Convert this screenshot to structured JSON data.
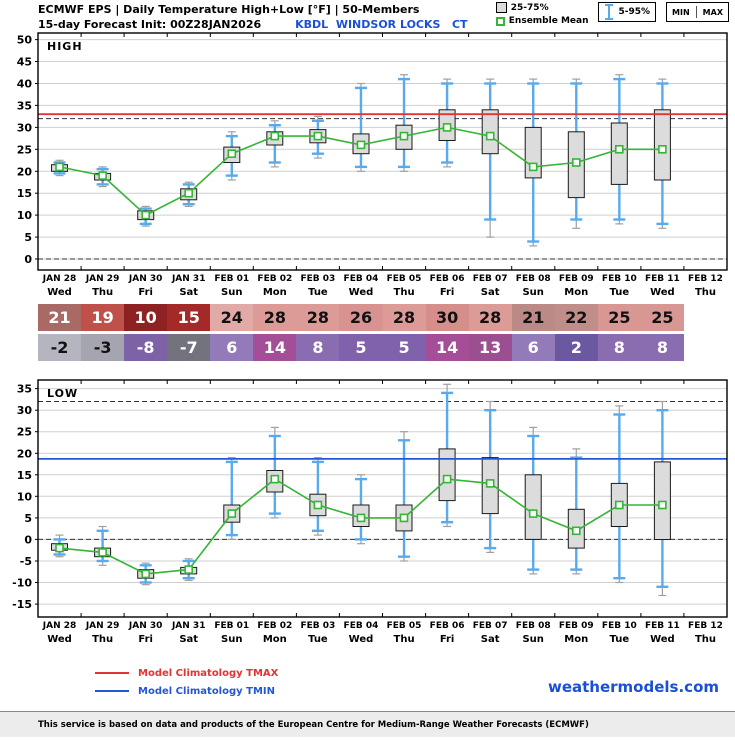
{
  "header": {
    "title_line1": "ECMWF EPS | Daily Temperature High+Low [°F] | 50-Members",
    "title_line2": "15-day Forecast Init: 00Z28JAN2026",
    "station": "KBDL  WINDSOR LOCKS   CT",
    "legend": {
      "box_label": "25-75%",
      "mean_label": "Ensemble Mean",
      "whisker_label": "5-95%",
      "min_label": "MIN",
      "max_label": "MAX"
    }
  },
  "colors": {
    "station_blue": "#1b50d6",
    "whisker_blue": "#58aaec",
    "box_fill": "#dcdcdc",
    "mean_green": "#35b535",
    "minmax_gray": "#a0a0a0",
    "climatology_tmax": "#e43333",
    "climatology_tmin": "#2457d6",
    "grid_gray": "#cfcfcf"
  },
  "axis": {
    "dates": [
      "JAN 28",
      "JAN 29",
      "JAN 30",
      "JAN 31",
      "FEB 01",
      "FEB 02",
      "FEB 03",
      "FEB 04",
      "FEB 05",
      "FEB 06",
      "FEB 07",
      "FEB 08",
      "FEB 09",
      "FEB 10",
      "FEB 11",
      "FEB 12"
    ],
    "days": [
      "Wed",
      "Thu",
      "Fri",
      "Sat",
      "Sun",
      "Mon",
      "Tue",
      "Wed",
      "Thu",
      "Fri",
      "Sat",
      "Sun",
      "Mon",
      "Tue",
      "Wed",
      "Thu"
    ]
  },
  "chart_data": [
    {
      "type": "boxplot",
      "title": "HIGH",
      "ylabel": "",
      "ylim": [
        -2.5,
        51.5
      ],
      "yticks": [
        0,
        5,
        10,
        15,
        20,
        25,
        30,
        35,
        40,
        45,
        50
      ],
      "dashed_lines": [
        32,
        0
      ],
      "grid": true,
      "climatology": {
        "label": "Model Climatology TMAX",
        "value": 33,
        "color": "#e43333"
      },
      "categories": [
        "JAN 28",
        "JAN 29",
        "JAN 30",
        "JAN 31",
        "FEB 01",
        "FEB 02",
        "FEB 03",
        "FEB 04",
        "FEB 05",
        "FEB 06",
        "FEB 07",
        "FEB 08",
        "FEB 09",
        "FEB 10",
        "FEB 11"
      ],
      "mean": [
        21,
        19,
        10,
        15,
        24,
        28,
        28,
        26,
        28,
        30,
        28,
        21,
        22,
        25,
        25
      ],
      "p25": [
        20,
        18,
        9,
        13.5,
        22,
        26,
        26.5,
        24,
        25,
        27,
        24,
        18.5,
        14,
        17,
        18
      ],
      "p75": [
        21.5,
        19.5,
        11,
        16,
        25.5,
        29,
        29.5,
        28.5,
        30.5,
        34,
        34,
        30,
        29,
        31,
        34
      ],
      "p5": [
        19.5,
        17,
        8,
        12.5,
        19,
        22,
        24,
        21,
        21,
        22,
        9,
        4,
        9,
        9,
        8
      ],
      "p95": [
        22,
        20.5,
        11.5,
        17,
        28,
        30.5,
        31.5,
        39,
        41,
        40,
        40,
        40,
        40,
        41,
        40
      ],
      "min": [
        19,
        16.5,
        7.5,
        12,
        18,
        21,
        23,
        20,
        20,
        21,
        5,
        3,
        7,
        8,
        7
      ],
      "max": [
        22.5,
        21,
        12,
        17.5,
        29,
        31.5,
        32.5,
        40,
        42,
        41,
        41,
        41,
        41,
        42,
        41
      ]
    },
    {
      "type": "boxplot",
      "title": "LOW",
      "ylabel": "",
      "ylim": [
        -18,
        37
      ],
      "yticks": [
        -15,
        -10,
        -5,
        0,
        5,
        10,
        15,
        20,
        25,
        30,
        35
      ],
      "dashed_lines": [
        32,
        0
      ],
      "grid": true,
      "climatology": {
        "label": "Model Climatology TMIN",
        "value": 18.7,
        "color": "#2457d6"
      },
      "categories": [
        "JAN 28",
        "JAN 29",
        "JAN 30",
        "JAN 31",
        "FEB 01",
        "FEB 02",
        "FEB 03",
        "FEB 04",
        "FEB 05",
        "FEB 06",
        "FEB 07",
        "FEB 08",
        "FEB 09",
        "FEB 10",
        "FEB 11"
      ],
      "mean": [
        -2,
        -3,
        -8,
        -7,
        6,
        14,
        8,
        5,
        5,
        14,
        13,
        6,
        2,
        8,
        8
      ],
      "p25": [
        -2.5,
        -4,
        -9,
        -8,
        4,
        11,
        5.5,
        3,
        2,
        9,
        6,
        0,
        -2,
        3,
        0
      ],
      "p75": [
        -1,
        -2,
        -7,
        -6.5,
        8,
        16,
        10.5,
        8,
        8,
        21,
        19,
        15,
        7,
        13,
        18
      ],
      "p5": [
        -3.5,
        -5,
        -10,
        -9,
        1,
        6,
        2,
        0,
        -4,
        4,
        -2,
        -7,
        -7,
        -9,
        -11
      ],
      "p95": [
        0,
        2,
        -6,
        -5,
        18,
        24,
        18,
        14,
        23,
        34,
        30,
        24,
        19,
        29,
        30
      ],
      "min": [
        -4,
        -6,
        -10.5,
        -9.5,
        0,
        5,
        1,
        -1,
        -5,
        3,
        -3,
        -8,
        -8,
        -10,
        -13
      ],
      "max": [
        1,
        3,
        -5.5,
        -4.5,
        19,
        26,
        19,
        15,
        25,
        36,
        32,
        26,
        21,
        31,
        32
      ]
    }
  ],
  "table": {
    "high": {
      "values": [
        21,
        19,
        10,
        15,
        24,
        28,
        28,
        26,
        28,
        30,
        28,
        21,
        22,
        25,
        25
      ],
      "colors": [
        "#a96a66",
        "#c0504a",
        "#8e2222",
        "#a32a28",
        "#e2aaa6",
        "#dd9b97",
        "#dd9b97",
        "#d89390",
        "#dd9b97",
        "#d68e8a",
        "#dd9b97",
        "#bc8a86",
        "#c08d89",
        "#d99793",
        "#d99793"
      ],
      "text_colors": [
        "#ffffff",
        "#ffffff",
        "#ffffff",
        "#ffffff",
        "#111111",
        "#111111",
        "#111111",
        "#111111",
        "#111111",
        "#111111",
        "#111111",
        "#111111",
        "#111111",
        "#111111",
        "#111111"
      ]
    },
    "low": {
      "values": [
        -2,
        -3,
        -8,
        -7,
        6,
        14,
        8,
        5,
        5,
        14,
        13,
        6,
        2,
        8,
        8
      ],
      "colors": [
        "#b5b5bf",
        "#a5a5b0",
        "#7e62a8",
        "#73737e",
        "#927bb8",
        "#a44e98",
        "#8a6cb0",
        "#7f62ab",
        "#7f62ab",
        "#a44e98",
        "#9c4f90",
        "#927bb8",
        "#6c58a0",
        "#8a6cb0",
        "#8a6cb0"
      ],
      "text_colors": [
        "#111111",
        "#111111",
        "#ffffff",
        "#ffffff",
        "#ffffff",
        "#ffffff",
        "#ffffff",
        "#ffffff",
        "#ffffff",
        "#ffffff",
        "#ffffff",
        "#ffffff",
        "#ffffff",
        "#ffffff",
        "#ffffff"
      ]
    }
  },
  "footer": {
    "tmax_label": "Model Climatology TMAX",
    "tmin_label": "Model Climatology TMIN",
    "site": "weathermodels.com",
    "disclaimer": "This service is based on data and products of the European Centre for Medium-Range Weather Forecasts (ECMWF)"
  }
}
